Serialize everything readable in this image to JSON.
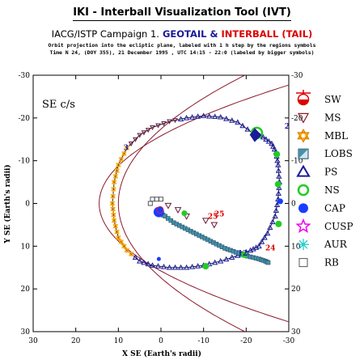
{
  "header": {
    "title": "IKI - Interball Visualization Tool (IVT)",
    "campaign": "IACG/ISTP Campaign 1.",
    "mission_a": "GEOTAIL",
    "ampersand": "&",
    "mission_b": "INTERBALL (TAIL)",
    "info_line_1": "Orbit projection into the ecliptic plane, labeled with 1 h step by the regions symbols",
    "info_line_2": "Time N 24, (DOY 355), 21 December 1995 ,  UTC 14:15 - 22:0 (labeled by bigger symbols)"
  },
  "colors": {
    "geotail": "#1a1a99",
    "interball": "#dd0000",
    "magnetopause": "#8b1a2b",
    "orbit": "#202040",
    "frame": "#000000"
  },
  "chart_data": {
    "type": "scatter",
    "frame_label": "SE c/s",
    "xlabel": "X SE (Earth's radii)",
    "ylabel": "Y SE (Earth's radii)",
    "xlim": [
      30,
      -30
    ],
    "ylim": [
      -30,
      30
    ],
    "x_ticks": [
      30,
      20,
      10,
      0,
      -10,
      -20,
      -30
    ],
    "y_ticks": [
      -30,
      -20,
      -10,
      0,
      10,
      20,
      30
    ],
    "x_tick_labels": [
      "30",
      "20",
      "10",
      "0",
      "-10",
      "-20",
      "-30"
    ],
    "y_tick_labels": [
      "-30",
      "-20",
      "-10",
      "0",
      "10",
      "20",
      "30"
    ],
    "grid": false,
    "legend": {
      "placement": "right",
      "entries": [
        {
          "label": "SW",
          "icon": "sw-sun-icon",
          "color": "#dd0000"
        },
        {
          "label": "MS",
          "icon": "triangle-down-icon",
          "color": "#8b1a2b"
        },
        {
          "label": "MBL",
          "icon": "star-of-david-icon",
          "color": "#ffa500"
        },
        {
          "label": "LOBS",
          "icon": "half-filled-square-icon",
          "color": "#4a8fa8"
        },
        {
          "label": "PS",
          "icon": "triangle-up-icon",
          "color": "#1a1a99"
        },
        {
          "label": "NS",
          "icon": "ring-icon",
          "color": "#22cc22"
        },
        {
          "label": "CAP",
          "icon": "filled-circle-icon",
          "color": "#1a3cff"
        },
        {
          "label": "CUSP",
          "icon": "star-icon",
          "color": "#ee00ee"
        },
        {
          "label": "AUR",
          "icon": "asterisk-icon",
          "color": "#22cccc"
        },
        {
          "label": "RB",
          "icon": "square-icon",
          "color": "#555555"
        }
      ]
    },
    "series": [
      {
        "name": "GEOTAIL",
        "values": [
          [
            -21.5,
            -16.5
          ],
          [
            -18,
            -19
          ],
          [
            -14,
            -20.2
          ],
          [
            -10,
            -20.5
          ],
          [
            -6,
            -20
          ],
          [
            -2,
            -19.2
          ],
          [
            2,
            -17.8
          ],
          [
            5,
            -16
          ],
          [
            8,
            -13
          ],
          [
            10,
            -9
          ],
          [
            11,
            -5
          ],
          [
            11.4,
            0
          ],
          [
            11,
            4
          ],
          [
            10,
            8
          ],
          [
            8,
            11
          ],
          [
            5,
            13.5
          ],
          [
            2,
            14.5
          ],
          [
            -2,
            15
          ],
          [
            -6,
            15
          ],
          [
            -10,
            14.5
          ],
          [
            -14,
            13.5
          ],
          [
            -18,
            12.2
          ],
          [
            -21,
            11
          ],
          [
            -23,
            10
          ],
          [
            -25,
            7
          ],
          [
            -26.8,
            3
          ],
          [
            -27.5,
            -1
          ],
          [
            -27.8,
            -5
          ],
          [
            -27.5,
            -9
          ],
          [
            -27,
            -12
          ],
          [
            -26,
            -14
          ],
          [
            -24,
            -15.5
          ],
          [
            -21.5,
            -16.5
          ]
        ]
      },
      {
        "name": "INTERBALL (TAIL)",
        "values": [
          [
            0.5,
            2.2
          ],
          [
            -1,
            3
          ],
          [
            -3,
            4.5
          ],
          [
            -5,
            5.5
          ],
          [
            -7,
            6.5
          ],
          [
            -9,
            7.5
          ],
          [
            -11,
            8.5
          ],
          [
            -13,
            9.5
          ],
          [
            -15,
            10.5
          ],
          [
            -17,
            11.2
          ],
          [
            -19,
            12
          ],
          [
            -21,
            12.5
          ],
          [
            -23,
            13
          ],
          [
            -24.5,
            13.5
          ],
          [
            -25.5,
            14
          ]
        ]
      }
    ],
    "interball_points": [
      {
        "x": -1.7,
        "y": 0.5
      },
      {
        "x": -4,
        "y": 1.5
      },
      {
        "x": -6,
        "y": 3
      },
      {
        "x": -10.5,
        "y": 4
      },
      {
        "x": -12.5,
        "y": 5
      }
    ],
    "hour_labels": [
      {
        "text": "3",
        "x": 8.8,
        "y": -12.5,
        "color": "#1a1a99"
      },
      {
        "text": "25",
        "x": -12.5,
        "y": 3,
        "color": "#dd0000"
      },
      {
        "text": "24",
        "x": -24.5,
        "y": 11,
        "color": "#dd0000"
      },
      {
        "text": "21",
        "x": -29,
        "y": -17.5,
        "color": "#1a1a99"
      },
      {
        "text": "25",
        "x": -11,
        "y": 3.6,
        "color": "#dd0000"
      },
      {
        "text": "12",
        "x": -18,
        "y": 12.2,
        "color": "#1a1a99"
      }
    ]
  }
}
